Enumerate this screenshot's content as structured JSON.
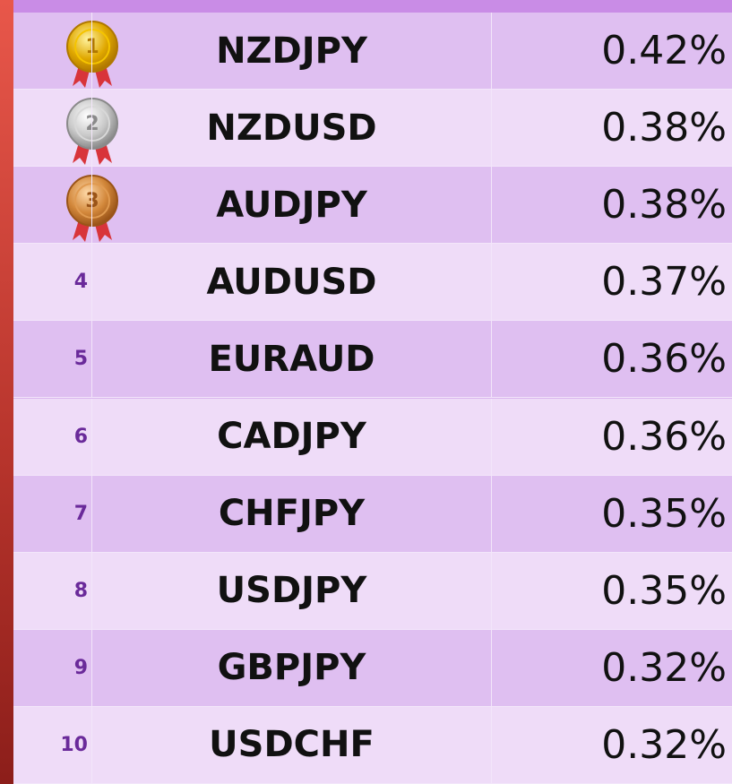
{
  "table": {
    "rows": [
      [
        "1",
        "NZDJPY",
        "0.42%"
      ],
      [
        "2",
        "NZDUSD",
        "0.38%"
      ],
      [
        "3",
        "AUDJPY",
        "0.38%"
      ],
      [
        "4",
        "AUDUSD",
        "0.37%"
      ],
      [
        "5",
        "EURAUD",
        "0.36%"
      ],
      [
        "6",
        "CADJPY",
        "0.36%"
      ],
      [
        "7",
        "CHFJPY",
        "0.35%"
      ],
      [
        "8",
        "USDJPY",
        "0.35%"
      ],
      [
        "9",
        "GBPJPY",
        "0.32%"
      ],
      [
        "10",
        "USDCHF",
        "0.32%"
      ]
    ]
  }
}
